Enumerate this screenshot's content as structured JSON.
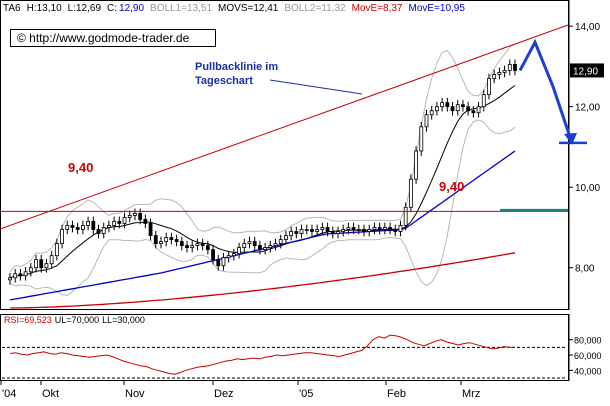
{
  "header": {
    "items": [
      {
        "text": "TA6",
        "color": "#000000"
      },
      {
        "text": "H:13,10",
        "color": "#000000"
      },
      {
        "text": "L:12,69",
        "color": "#000000"
      },
      {
        "text": "C:",
        "color": "#000000"
      },
      {
        "text": "12,90",
        "color": "#0000cc"
      },
      {
        "text": "BOLL1=13,51",
        "color": "#9a9a9a"
      },
      {
        "text": "MOVS=12,41",
        "color": "#000000"
      },
      {
        "text": "BOLL2=11,32",
        "color": "#9a9a9a"
      },
      {
        "text": "MovE=8,37",
        "color": "#cc0000"
      },
      {
        "text": "MovE=10,95",
        "color": "#0000cc"
      }
    ]
  },
  "watermark": "© http://www.godmode-trader.de",
  "annotation": "Pullbacklinie im Tageschart",
  "level_labels": [
    "9,40",
    "9,40"
  ],
  "colors": {
    "candle": "#000000",
    "boll": "#b8b8b8",
    "movs": "#000000",
    "ema_slow": "#cc0000",
    "ema_fast": "#0000cc",
    "trendline": "#cc0000",
    "horizontal": "#cc0000",
    "arrow": "#1a3fd6",
    "teal_level": "#1f7f7f",
    "rsi": "#cc0000",
    "last_price_bg": "#000000"
  },
  "chart_data": [
    {
      "type": "candlestick",
      "title": "",
      "ylim": [
        7.0,
        14.6
      ],
      "y_ticks": [
        "8,00",
        "10,00",
        "12,00",
        "14,00"
      ],
      "x_ticks": [
        "'04",
        "Okt",
        "Nov",
        "Dez",
        "'05",
        "Feb",
        "Mrz"
      ],
      "last_price_label": "12,90",
      "close": [
        7.75,
        7.85,
        7.8,
        7.9,
        8.0,
        8.2,
        8.0,
        8.1,
        8.3,
        8.6,
        8.95,
        9.05,
        9.0,
        8.95,
        9.05,
        9.15,
        8.95,
        8.85,
        9.0,
        9.05,
        9.15,
        9.1,
        9.25,
        9.3,
        9.35,
        9.2,
        9.1,
        8.8,
        8.6,
        8.65,
        8.75,
        8.7,
        8.65,
        8.55,
        8.5,
        8.55,
        8.6,
        8.55,
        8.45,
        8.2,
        8.05,
        8.25,
        8.3,
        8.35,
        8.5,
        8.6,
        8.65,
        8.55,
        8.45,
        8.5,
        8.55,
        8.6,
        8.7,
        8.8,
        8.9,
        8.85,
        8.95,
        8.95,
        8.9,
        8.95,
        9.0,
        8.9,
        8.85,
        8.9,
        8.95,
        9.0,
        8.95,
        8.95,
        8.9,
        8.95,
        9.0,
        8.95,
        9.0,
        8.95,
        8.9,
        9.05,
        9.5,
        10.2,
        10.9,
        11.5,
        11.8,
        11.9,
        12.0,
        12.1,
        12.0,
        11.9,
        12.05,
        12.0,
        11.9,
        11.85,
        12.0,
        12.3,
        12.7,
        12.8,
        12.85,
        12.9,
        13.05,
        12.9
      ],
      "bollinger_upper_end": 13.51,
      "bollinger_lower_end": 11.32,
      "movs_end": 12.41,
      "ema_slow_end": 8.37,
      "ema_fast_end": 10.95,
      "horizontal_level": 9.4,
      "projection": [
        12.9,
        13.6,
        12.5,
        11.1
      ]
    },
    {
      "type": "line",
      "title": "",
      "series": [
        {
          "name": "RSI",
          "values": [
            62,
            63,
            61,
            60,
            62,
            63,
            64,
            62,
            61,
            63,
            62,
            60,
            59,
            58,
            57,
            58,
            59,
            60,
            58,
            55,
            52,
            50,
            48,
            46,
            45,
            42,
            40,
            38,
            36,
            35,
            37,
            40,
            42,
            44,
            45,
            46,
            48,
            50,
            52,
            53,
            55,
            54,
            55,
            56,
            55,
            57,
            58,
            60,
            59,
            60,
            61,
            62,
            63,
            63,
            62,
            61,
            60,
            59,
            58,
            60,
            62,
            64,
            66,
            72,
            80,
            84,
            82,
            86,
            85,
            83,
            80,
            76,
            74,
            72,
            75,
            78,
            80,
            77,
            75,
            73,
            75,
            76,
            74,
            72,
            70,
            68,
            69,
            71,
            70,
            70
          ]
        }
      ],
      "ylim": [
        30,
        90
      ],
      "y_ticks": [
        "40,000",
        "60,000",
        "80,000"
      ],
      "header": {
        "rsi": "RSI=69,523",
        "ul": "UL=70,000",
        "ll": "LL=30,000"
      },
      "upper_level": 70,
      "lower_level": 30
    }
  ]
}
